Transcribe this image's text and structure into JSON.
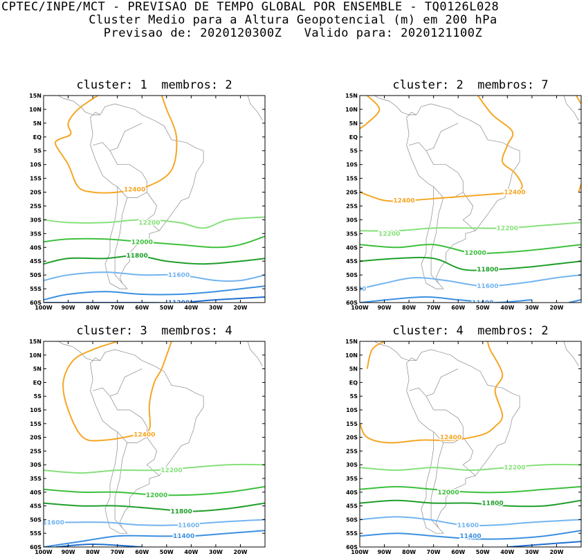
{
  "header": {
    "line1": "CPTEC/INPE/MCT - PREVISAO DE TEMPO GLOBAL POR ENSEMBLE - TQ0126L028",
    "line2": "Cluster Medio para a Altura Geopotencial (m) em 200 hPa",
    "line3": "Previsao de: 2020120300Z   Valido para: 2020121100Z"
  },
  "axes": {
    "lat_labels": [
      "15N",
      "10N",
      "5N",
      "EQ",
      "5S",
      "10S",
      "15S",
      "20S",
      "25S",
      "30S",
      "35S",
      "40S",
      "45S",
      "50S",
      "55S",
      "60S"
    ],
    "lon_labels": [
      "100W",
      "90W",
      "80W",
      "70W",
      "60W",
      "50W",
      "40W",
      "30W",
      "20W"
    ]
  },
  "colors": {
    "c12400": "#f5a623",
    "c12200": "#86e07a",
    "c12000": "#3cbf3c",
    "c11800": "#1e9e2a",
    "c11600": "#73b4ef",
    "c11400": "#3b8fe0",
    "c11200": "#1f6fd0"
  },
  "panels": [
    {
      "title": "cluster: 1  membros: 2",
      "labels": [
        {
          "text": "12400",
          "color": "c12400",
          "lon": -63,
          "lat": -19
        },
        {
          "text": "12200",
          "color": "c12200",
          "lon": -57,
          "lat": -31
        },
        {
          "text": "12000",
          "color": "c12000",
          "lon": -60,
          "lat": -38
        },
        {
          "text": "11800",
          "color": "c11800",
          "lon": -62,
          "lat": -43
        },
        {
          "text": "11600",
          "color": "c11600",
          "lon": -45,
          "lat": -50
        },
        {
          "text": "11200",
          "color": "c11200",
          "lon": -45,
          "lat": -60
        }
      ]
    },
    {
      "title": "cluster: 2  membros: 7",
      "labels": [
        {
          "text": "12400",
          "color": "c12400",
          "lon": -82,
          "lat": -23
        },
        {
          "text": "12400",
          "color": "c12400",
          "lon": -37,
          "lat": -20
        },
        {
          "text": "12200",
          "color": "c12200",
          "lon": -88,
          "lat": -35
        },
        {
          "text": "12200",
          "color": "c12200",
          "lon": -40,
          "lat": -33
        },
        {
          "text": "12000",
          "color": "c12000",
          "lon": -53,
          "lat": -42
        },
        {
          "text": "11800",
          "color": "c11800",
          "lon": -48,
          "lat": -48
        },
        {
          "text": "11600",
          "color": "c11600",
          "lon": -48,
          "lat": -54
        },
        {
          "text": "600",
          "color": "c11600",
          "lon": -100,
          "lat": -55
        },
        {
          "text": "11400",
          "color": "c11400",
          "lon": -50,
          "lat": -60
        }
      ]
    },
    {
      "title": "cluster: 3  membros: 4",
      "labels": [
        {
          "text": "12400",
          "color": "c12400",
          "lon": -59,
          "lat": -19
        },
        {
          "text": "12200",
          "color": "c12200",
          "lon": -48,
          "lat": -32
        },
        {
          "text": "12000",
          "color": "c12000",
          "lon": -54,
          "lat": -41
        },
        {
          "text": "11800",
          "color": "c11800",
          "lon": -44,
          "lat": -47
        },
        {
          "text": "11600",
          "color": "c11600",
          "lon": -96,
          "lat": -51
        },
        {
          "text": "11600",
          "color": "c11600",
          "lon": -41,
          "lat": -52
        },
        {
          "text": "11400",
          "color": "c11400",
          "lon": -43,
          "lat": -56
        }
      ]
    },
    {
      "title": "cluster: 4  membros: 2",
      "labels": [
        {
          "text": "12400",
          "color": "c12400",
          "lon": -63,
          "lat": -20
        },
        {
          "text": "12200",
          "color": "c12200",
          "lon": -37,
          "lat": -31
        },
        {
          "text": "12000",
          "color": "c12000",
          "lon": -64,
          "lat": -40
        },
        {
          "text": "11800",
          "color": "c11800",
          "lon": -46,
          "lat": -44
        },
        {
          "text": "11600",
          "color": "c11600",
          "lon": -56,
          "lat": -52
        },
        {
          "text": "11400",
          "color": "c11400",
          "lon": -55,
          "lat": -56
        }
      ]
    }
  ]
}
